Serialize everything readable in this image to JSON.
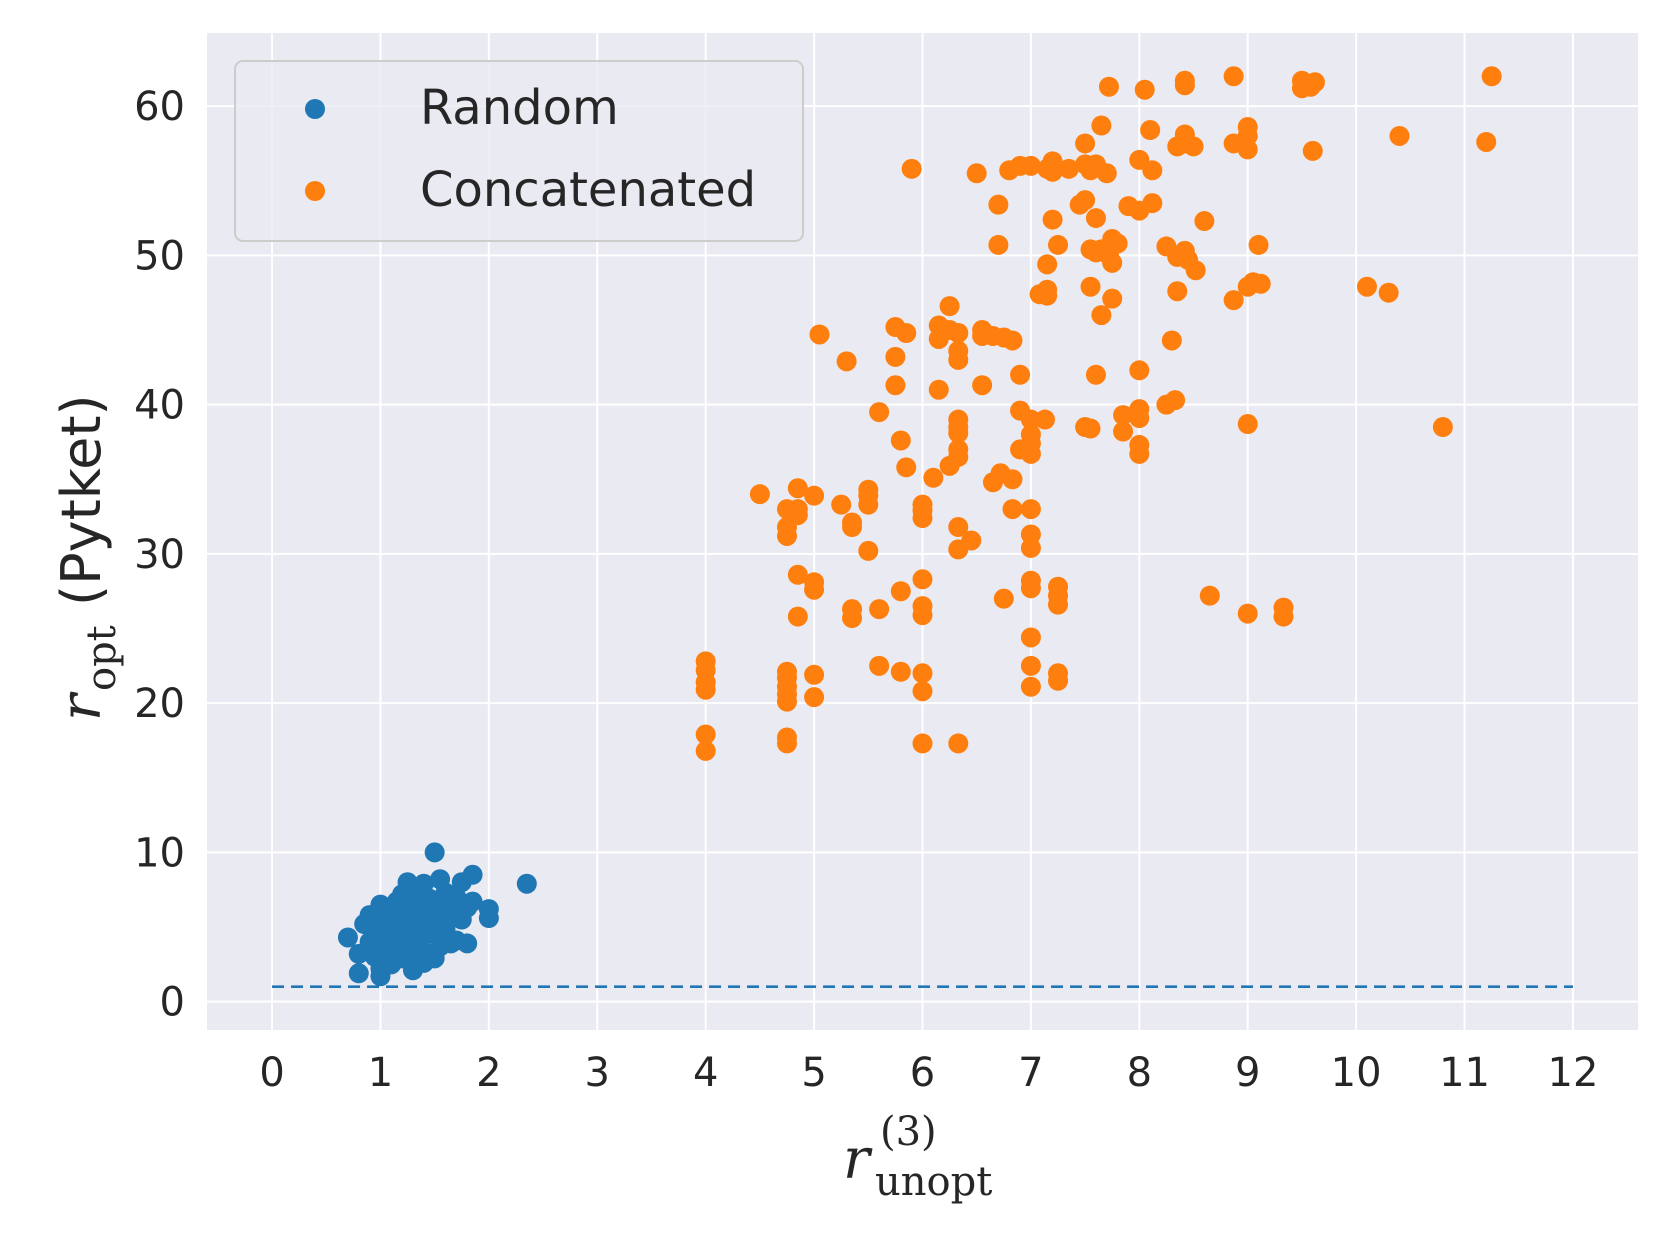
{
  "chart_data": {
    "type": "scatter",
    "xlabel": {
      "symbol": "r",
      "superscript": "(3)",
      "subscript": "unopt"
    },
    "ylabel": {
      "symbol": "r",
      "subscript": "opt",
      "suffix": "(Pytket)"
    },
    "xlim": [
      -0.6,
      12.6
    ],
    "ylim": [
      -1.9,
      64.9
    ],
    "xticks": [
      "0",
      "1",
      "2",
      "3",
      "4",
      "5",
      "6",
      "7",
      "8",
      "9",
      "10",
      "11",
      "12"
    ],
    "yticks": [
      "0",
      "10",
      "20",
      "30",
      "40",
      "50",
      "60"
    ],
    "grid": true,
    "legend_position": "top-left",
    "reference_line": {
      "style": "dashed",
      "color": "#1f77b4",
      "y": 1,
      "x": [
        0,
        12
      ]
    },
    "series": [
      {
        "name": "Random",
        "color": "#1f77b4",
        "points": [
          [
            0.7,
            4.3
          ],
          [
            0.8,
            3.2
          ],
          [
            0.8,
            1.9
          ],
          [
            0.85,
            5.2
          ],
          [
            0.9,
            4.0
          ],
          [
            0.9,
            5.8
          ],
          [
            0.95,
            3.0
          ],
          [
            0.95,
            4.7
          ],
          [
            1.0,
            2.2
          ],
          [
            1.0,
            1.7
          ],
          [
            1.0,
            3.5
          ],
          [
            1.0,
            6.5
          ],
          [
            1.0,
            5.2
          ],
          [
            1.05,
            4.1
          ],
          [
            1.05,
            2.8
          ],
          [
            1.05,
            5.6
          ],
          [
            1.1,
            3.3
          ],
          [
            1.1,
            6.1
          ],
          [
            1.1,
            4.5
          ],
          [
            1.1,
            2.5
          ],
          [
            1.15,
            5.0
          ],
          [
            1.15,
            3.8
          ],
          [
            1.15,
            6.7
          ],
          [
            1.2,
            4.2
          ],
          [
            1.2,
            2.9
          ],
          [
            1.2,
            7.2
          ],
          [
            1.2,
            5.5
          ],
          [
            1.25,
            3.5
          ],
          [
            1.25,
            6.0
          ],
          [
            1.25,
            4.8
          ],
          [
            1.25,
            8.0
          ],
          [
            1.3,
            2.1
          ],
          [
            1.3,
            3.0
          ],
          [
            1.3,
            5.3
          ],
          [
            1.3,
            6.8
          ],
          [
            1.3,
            4.0
          ],
          [
            1.35,
            7.6
          ],
          [
            1.35,
            3.6
          ],
          [
            1.35,
            5.8
          ],
          [
            1.4,
            2.6
          ],
          [
            1.4,
            4.4
          ],
          [
            1.4,
            6.4
          ],
          [
            1.4,
            7.9
          ],
          [
            1.45,
            3.2
          ],
          [
            1.45,
            5.1
          ],
          [
            1.45,
            6.9
          ],
          [
            1.5,
            2.9
          ],
          [
            1.5,
            4.6
          ],
          [
            1.5,
            10.0
          ],
          [
            1.5,
            6.0
          ],
          [
            1.55,
            8.2
          ],
          [
            1.55,
            3.7
          ],
          [
            1.55,
            5.4
          ],
          [
            1.6,
            6.5
          ],
          [
            1.6,
            4.9
          ],
          [
            1.6,
            7.3
          ],
          [
            1.65,
            3.9
          ],
          [
            1.65,
            5.8
          ],
          [
            1.7,
            7.0
          ],
          [
            1.7,
            4.1
          ],
          [
            1.75,
            8.0
          ],
          [
            1.75,
            5.5
          ],
          [
            1.8,
            6.3
          ],
          [
            1.8,
            3.9
          ],
          [
            1.85,
            8.5
          ],
          [
            1.85,
            6.7
          ],
          [
            2.0,
            5.6
          ],
          [
            2.0,
            6.2
          ],
          [
            2.35,
            7.9
          ]
        ]
      },
      {
        "name": "Concatenated",
        "color": "#ff7f0e",
        "points": [
          [
            4.0,
            22.8
          ],
          [
            4.0,
            22.2
          ],
          [
            4.0,
            21.4
          ],
          [
            4.0,
            20.9
          ],
          [
            4.0,
            17.9
          ],
          [
            4.0,
            16.8
          ],
          [
            4.5,
            34.0
          ],
          [
            4.75,
            33.0
          ],
          [
            4.75,
            31.8
          ],
          [
            4.75,
            31.2
          ],
          [
            4.75,
            22.1
          ],
          [
            4.75,
            21.7
          ],
          [
            4.75,
            21.1
          ],
          [
            4.75,
            20.6
          ],
          [
            4.75,
            20.1
          ],
          [
            4.75,
            17.7
          ],
          [
            4.75,
            17.3
          ],
          [
            4.85,
            34.4
          ],
          [
            4.85,
            33.0
          ],
          [
            4.85,
            32.6
          ],
          [
            4.85,
            28.6
          ],
          [
            4.85,
            25.8
          ],
          [
            5.0,
            33.9
          ],
          [
            5.0,
            28.1
          ],
          [
            5.0,
            27.6
          ],
          [
            5.0,
            21.9
          ],
          [
            5.0,
            20.4
          ],
          [
            5.05,
            44.7
          ],
          [
            5.25,
            33.3
          ],
          [
            5.3,
            42.9
          ],
          [
            5.35,
            32.1
          ],
          [
            5.35,
            31.8
          ],
          [
            5.35,
            26.3
          ],
          [
            5.35,
            25.7
          ],
          [
            5.5,
            34.3
          ],
          [
            5.5,
            33.9
          ],
          [
            5.5,
            33.3
          ],
          [
            5.5,
            30.2
          ],
          [
            5.6,
            39.5
          ],
          [
            5.6,
            26.3
          ],
          [
            5.6,
            22.5
          ],
          [
            5.75,
            45.2
          ],
          [
            5.75,
            43.2
          ],
          [
            5.75,
            41.3
          ],
          [
            5.8,
            37.6
          ],
          [
            5.8,
            27.5
          ],
          [
            5.8,
            22.1
          ],
          [
            5.85,
            44.8
          ],
          [
            5.85,
            35.8
          ],
          [
            5.9,
            55.8
          ],
          [
            6.0,
            33.3
          ],
          [
            6.0,
            32.9
          ],
          [
            6.0,
            32.4
          ],
          [
            6.0,
            28.3
          ],
          [
            6.0,
            26.5
          ],
          [
            6.0,
            25.9
          ],
          [
            6.0,
            22.0
          ],
          [
            6.0,
            20.8
          ],
          [
            6.0,
            17.3
          ],
          [
            6.1,
            35.1
          ],
          [
            6.15,
            45.3
          ],
          [
            6.15,
            44.4
          ],
          [
            6.15,
            41.0
          ],
          [
            6.25,
            46.6
          ],
          [
            6.25,
            45.0
          ],
          [
            6.25,
            35.9
          ],
          [
            6.33,
            44.8
          ],
          [
            6.33,
            43.6
          ],
          [
            6.33,
            43.0
          ],
          [
            6.33,
            39.0
          ],
          [
            6.33,
            38.5
          ],
          [
            6.33,
            38.1
          ],
          [
            6.33,
            37.0
          ],
          [
            6.33,
            36.5
          ],
          [
            6.33,
            31.8
          ],
          [
            6.33,
            30.3
          ],
          [
            6.33,
            17.3
          ],
          [
            6.45,
            30.9
          ],
          [
            6.5,
            55.5
          ],
          [
            6.55,
            45.0
          ],
          [
            6.55,
            44.6
          ],
          [
            6.55,
            41.3
          ],
          [
            6.65,
            44.6
          ],
          [
            6.65,
            34.8
          ],
          [
            6.7,
            53.4
          ],
          [
            6.7,
            50.7
          ],
          [
            6.72,
            35.4
          ],
          [
            6.75,
            44.5
          ],
          [
            6.75,
            27.0
          ],
          [
            6.8,
            55.7
          ],
          [
            6.83,
            44.3
          ],
          [
            6.83,
            35.0
          ],
          [
            6.83,
            33.0
          ],
          [
            6.9,
            56.0
          ],
          [
            6.9,
            42.0
          ],
          [
            6.9,
            39.6
          ],
          [
            6.9,
            37.0
          ],
          [
            7.0,
            56.0
          ],
          [
            7.0,
            39.0
          ],
          [
            7.0,
            38.0
          ],
          [
            7.0,
            37.4
          ],
          [
            7.0,
            36.7
          ],
          [
            7.0,
            33.0
          ],
          [
            7.0,
            31.3
          ],
          [
            7.0,
            30.4
          ],
          [
            7.0,
            28.2
          ],
          [
            7.0,
            27.7
          ],
          [
            7.0,
            24.4
          ],
          [
            7.0,
            22.5
          ],
          [
            7.0,
            21.1
          ],
          [
            7.08,
            47.4
          ],
          [
            7.13,
            39.0
          ],
          [
            7.15,
            55.8
          ],
          [
            7.15,
            49.4
          ],
          [
            7.15,
            47.7
          ],
          [
            7.15,
            47.3
          ],
          [
            7.2,
            56.3
          ],
          [
            7.2,
            55.6
          ],
          [
            7.2,
            52.4
          ],
          [
            7.25,
            50.7
          ],
          [
            7.25,
            27.8
          ],
          [
            7.25,
            27.2
          ],
          [
            7.25,
            26.6
          ],
          [
            7.25,
            22.0
          ],
          [
            7.25,
            21.5
          ],
          [
            7.35,
            55.8
          ],
          [
            7.45,
            53.4
          ],
          [
            7.5,
            57.5
          ],
          [
            7.5,
            56.1
          ],
          [
            7.5,
            53.7
          ],
          [
            7.5,
            38.5
          ],
          [
            7.55,
            55.7
          ],
          [
            7.55,
            50.4
          ],
          [
            7.55,
            47.9
          ],
          [
            7.55,
            38.4
          ],
          [
            7.6,
            56.1
          ],
          [
            7.6,
            52.5
          ],
          [
            7.6,
            50.2
          ],
          [
            7.6,
            42.0
          ],
          [
            7.65,
            58.7
          ],
          [
            7.65,
            50.4
          ],
          [
            7.65,
            46.0
          ],
          [
            7.7,
            55.5
          ],
          [
            7.72,
            61.3
          ],
          [
            7.72,
            50.5
          ],
          [
            7.72,
            50.0
          ],
          [
            7.75,
            51.1
          ],
          [
            7.75,
            49.5
          ],
          [
            7.75,
            47.1
          ],
          [
            7.8,
            50.8
          ],
          [
            7.85,
            39.3
          ],
          [
            7.85,
            38.2
          ],
          [
            7.9,
            53.3
          ],
          [
            8.0,
            56.4
          ],
          [
            8.0,
            53.0
          ],
          [
            8.0,
            42.3
          ],
          [
            8.0,
            39.7
          ],
          [
            8.0,
            39.1
          ],
          [
            8.0,
            37.3
          ],
          [
            8.0,
            36.7
          ],
          [
            8.05,
            61.1
          ],
          [
            8.1,
            58.4
          ],
          [
            8.12,
            55.7
          ],
          [
            8.12,
            53.5
          ],
          [
            8.25,
            50.6
          ],
          [
            8.25,
            40.0
          ],
          [
            8.3,
            44.3
          ],
          [
            8.33,
            40.3
          ],
          [
            8.35,
            49.9
          ],
          [
            8.35,
            47.6
          ],
          [
            8.35,
            57.3
          ],
          [
            8.42,
            61.7
          ],
          [
            8.42,
            61.4
          ],
          [
            8.42,
            58.1
          ],
          [
            8.42,
            57.5
          ],
          [
            8.42,
            50.3
          ],
          [
            8.45,
            49.7
          ],
          [
            8.5,
            57.3
          ],
          [
            8.52,
            49.0
          ],
          [
            8.6,
            52.3
          ],
          [
            8.65,
            27.2
          ],
          [
            8.87,
            62.0
          ],
          [
            8.87,
            57.5
          ],
          [
            8.87,
            47.0
          ],
          [
            9.0,
            58.6
          ],
          [
            9.0,
            58.0
          ],
          [
            9.0,
            57.1
          ],
          [
            9.0,
            47.9
          ],
          [
            9.0,
            38.7
          ],
          [
            9.0,
            26.0
          ],
          [
            9.05,
            48.2
          ],
          [
            9.1,
            50.7
          ],
          [
            9.12,
            48.1
          ],
          [
            9.33,
            26.4
          ],
          [
            9.33,
            25.8
          ],
          [
            9.5,
            61.2
          ],
          [
            9.5,
            61.7
          ],
          [
            9.58,
            61.3
          ],
          [
            9.6,
            57.0
          ],
          [
            9.62,
            61.6
          ],
          [
            10.1,
            47.9
          ],
          [
            10.3,
            47.5
          ],
          [
            10.4,
            58.0
          ],
          [
            10.8,
            38.5
          ],
          [
            11.2,
            57.6
          ],
          [
            11.25,
            62.0
          ]
        ]
      }
    ]
  }
}
